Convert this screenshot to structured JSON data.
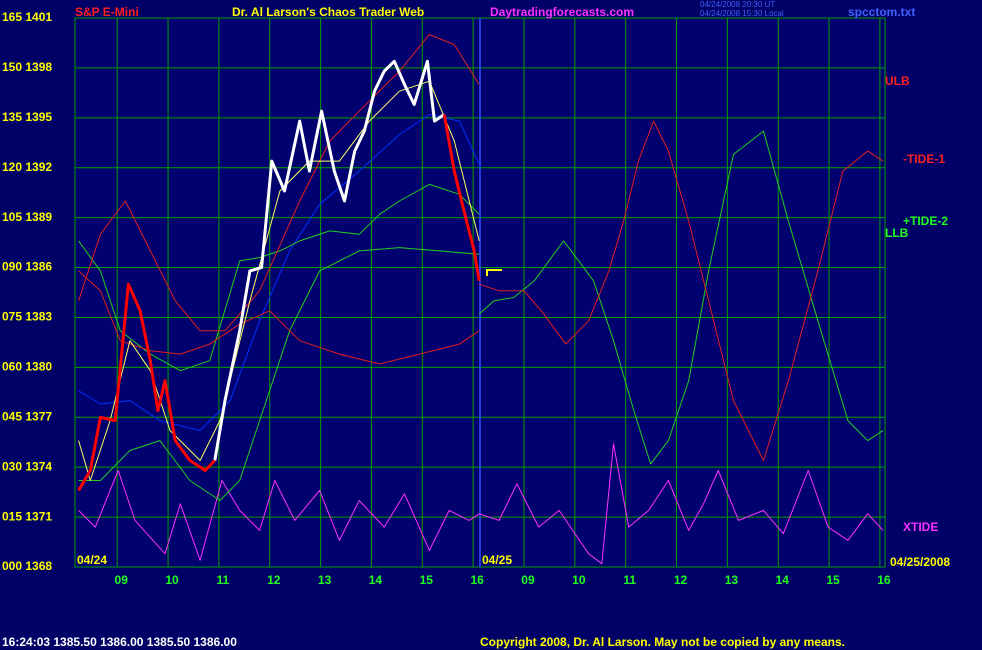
{
  "chart_data": {
    "type": "line",
    "header": [
      {
        "text": "S&P E-Mini",
        "color": "#ff2020"
      },
      {
        "text": "Dr. Al Larson's Chaos Trader Web",
        "color": "#ffff00"
      },
      {
        "text": "Daytradingforecasts.com",
        "color": "#ff30ff"
      },
      {
        "text": "04/24/2008 20:30 UT",
        "color": "#4060ff"
      },
      {
        "text": "04/24/2008 15:30 Local",
        "color": "#4060ff"
      },
      {
        "text": "spcctom.txt",
        "color": "#4060ff"
      }
    ],
    "footer": [
      {
        "text": "16:24:03  1385.50  1386.00  1385.50  1386.00",
        "color": "#ffffff"
      },
      {
        "text": "Copyright 2008, Dr. Al Larson. May not be copied by any means.",
        "color": "#ffff00"
      }
    ],
    "annotations": [
      {
        "text": "ULB",
        "color": "#ff2020"
      },
      {
        "text": "-TIDE-1",
        "color": "#ff2020"
      },
      {
        "text": "+TIDE-2",
        "color": "#20ff20"
      },
      {
        "text": "LLB",
        "color": "#20ff20"
      },
      {
        "text": "XTIDE",
        "color": "#ff30ff"
      },
      {
        "text": "04/24",
        "color": "#ffff00"
      },
      {
        "text": "04/25",
        "color": "#ffff00"
      },
      {
        "text": "04/25/2008",
        "color": "#ffff00"
      }
    ],
    "xlim": [
      -0.83,
      15.1
    ],
    "xticks": [
      {
        "value": 0,
        "label": "09"
      },
      {
        "value": 1,
        "label": "10"
      },
      {
        "value": 2,
        "label": "11"
      },
      {
        "value": 3,
        "label": "12"
      },
      {
        "value": 4,
        "label": "13"
      },
      {
        "value": 5,
        "label": "14"
      },
      {
        "value": 6,
        "label": "15"
      },
      {
        "value": 7,
        "label": "16"
      },
      {
        "value": 8,
        "label": "09"
      },
      {
        "value": 9,
        "label": "10"
      },
      {
        "value": 10,
        "label": "11"
      },
      {
        "value": 11,
        "label": "12"
      },
      {
        "value": 12,
        "label": "13"
      },
      {
        "value": 13,
        "label": "14"
      },
      {
        "value": 14,
        "label": "15"
      },
      {
        "value": 15,
        "label": "16"
      }
    ],
    "ylim": [
      0,
      165
    ],
    "yticks": [
      {
        "value": 0,
        "label": "000 1368"
      },
      {
        "value": 15,
        "label": "015 1371"
      },
      {
        "value": 30,
        "label": "030 1374"
      },
      {
        "value": 45,
        "label": "045 1377"
      },
      {
        "value": 60,
        "label": "060 1380"
      },
      {
        "value": 75,
        "label": "075 1383"
      },
      {
        "value": 90,
        "label": "090 1386"
      },
      {
        "value": 105,
        "label": "105 1389"
      },
      {
        "value": 120,
        "label": "120 1392"
      },
      {
        "value": 135,
        "label": "135 1395"
      },
      {
        "value": 150,
        "label": "150 1398"
      },
      {
        "value": 165,
        "label": "165 1401"
      }
    ],
    "grid": true,
    "grid_color": "#00a000",
    "series": [
      {
        "color": "#ff30ff",
        "x": [
          -0.76,
          -0.43,
          0.02,
          0.35,
          0.94,
          1.24,
          1.63,
          2.06,
          2.41,
          2.8,
          3.1,
          3.49,
          3.98,
          4.37,
          4.76,
          5.25,
          5.65,
          6.14,
          6.53,
          6.92,
          7.12,
          7.51,
          7.86,
          8.29,
          8.69,
          9.27,
          9.53,
          9.76,
          10.06,
          10.45,
          10.84,
          11.24,
          11.53,
          11.82,
          12.22,
          12.71,
          13.1,
          13.59,
          13.98,
          14.37,
          14.76,
          15.06
        ],
        "values": [
          17,
          12,
          29,
          14,
          4,
          19,
          2,
          26,
          17,
          11,
          26,
          14,
          23,
          8,
          20,
          12,
          22,
          5,
          17,
          14,
          16,
          14,
          25,
          12,
          17,
          4,
          1,
          37,
          12,
          17,
          26,
          11,
          19,
          29,
          14,
          17,
          10,
          29,
          12,
          8,
          16,
          11
        ]
      },
      {
        "color": "#0030ff",
        "x": [
          -0.76,
          -0.33,
          0.25,
          0.84,
          1.63,
          2.22,
          2.8,
          3.39,
          3.98,
          4.76,
          5.55,
          6.14,
          6.73,
          7.12
        ],
        "values": [
          53,
          49,
          50,
          44,
          41,
          50,
          74,
          95,
          109,
          119,
          130,
          136,
          134,
          121
        ]
      },
      {
        "color": "#20d020",
        "x": [
          -0.76,
          -0.33,
          0.25,
          0.84,
          1.43,
          2.02,
          2.41,
          2.8,
          3.39,
          3.98,
          4.76,
          5.55,
          6.33,
          7.12
        ],
        "values": [
          26,
          26,
          35,
          38,
          26,
          20,
          26,
          44,
          71,
          89,
          95,
          96,
          95,
          94
        ]
      },
      {
        "color": "#20d020",
        "x": [
          -0.76,
          -0.33,
          0.06,
          0.65,
          1.24,
          1.82,
          2.41,
          2.8,
          3.2,
          3.59,
          4.18,
          4.76,
          5.16,
          5.55,
          6.14,
          6.73,
          7.12
        ],
        "values": [
          98,
          89,
          71,
          64,
          59,
          62,
          92,
          93,
          95,
          98,
          101,
          100,
          106,
          110,
          115,
          112,
          106
        ]
      },
      {
        "color": "#20d020",
        "x": [
          7.12,
          7.41,
          7.8,
          8.2,
          8.78,
          9.37,
          9.76,
          10.16,
          10.49,
          10.84,
          11.24,
          11.63,
          12.12,
          12.71,
          13.2,
          13.78,
          14.37,
          14.76,
          15.06
        ],
        "values": [
          76,
          80,
          81,
          86,
          98,
          86,
          68,
          47,
          31,
          38,
          56,
          89,
          124,
          131,
          104,
          74,
          44,
          38,
          41
        ]
      },
      {
        "color": "#e02020",
        "x": [
          -0.76,
          -0.33,
          0.16,
          0.65,
          1.14,
          1.63,
          2.12,
          2.8,
          3.59,
          4.18,
          4.76,
          5.55,
          6.14,
          6.63,
          7.12
        ],
        "values": [
          80,
          100,
          110,
          95,
          80,
          71,
          71,
          83,
          110,
          128,
          137,
          149,
          160,
          157,
          145
        ]
      },
      {
        "color": "#e02020",
        "x": [
          -0.76,
          -0.33,
          0.06,
          0.65,
          1.24,
          1.82,
          2.41,
          3.0,
          3.59,
          4.37,
          5.16,
          5.94,
          6.73,
          7.12
        ],
        "values": [
          89,
          83,
          68,
          65,
          64,
          67,
          73,
          77,
          68,
          64,
          61,
          64,
          67,
          71
        ]
      },
      {
        "color": "#e02020",
        "x": [
          7.12,
          7.51,
          8.0,
          8.39,
          8.82,
          9.27,
          9.67,
          9.96,
          10.25,
          10.55,
          10.84,
          11.24,
          11.63,
          12.12,
          12.71,
          13.2,
          13.78,
          14.27,
          14.76,
          15.06
        ],
        "values": [
          85,
          83,
          83,
          76,
          67,
          74,
          89,
          104,
          122,
          134,
          125,
          104,
          80,
          50,
          32,
          56,
          89,
          119,
          125,
          122
        ]
      },
      {
        "color": "#ffff60",
        "x": [
          -0.76,
          -0.53,
          -0.14,
          0.25,
          0.65,
          1.04,
          1.63,
          2.02,
          2.61,
          3.2,
          3.78,
          4.37,
          4.96,
          5.55,
          6.14,
          6.63,
          7.12
        ],
        "values": [
          38,
          26,
          44,
          68,
          59,
          41,
          32,
          44,
          80,
          113,
          122,
          122,
          134,
          143,
          146,
          128,
          98
        ]
      },
      {
        "color": "#ffffff",
        "x": [
          1.92,
          2.12,
          2.41,
          2.61,
          2.84,
          3.04,
          3.29,
          3.59,
          3.78,
          4.02,
          4.27,
          4.47,
          4.67,
          4.86,
          5.06,
          5.25,
          5.45,
          5.65,
          5.84,
          6.1,
          6.24,
          6.43
        ],
        "values": [
          32,
          50,
          71,
          89,
          90,
          122,
          113,
          134,
          119,
          137,
          119,
          110,
          125,
          131,
          143,
          149,
          152,
          145,
          139,
          152,
          134,
          136
        ]
      },
      {
        "color": "#ff0000",
        "x": [
          -0.76,
          -0.53,
          -0.33,
          -0.04,
          0.22,
          0.45,
          0.65,
          0.8,
          0.94,
          1.14,
          1.43,
          1.73,
          1.92,
          4.0,
          6.43,
          6.63,
          6.82,
          7.02,
          7.12
        ],
        "values": [
          23,
          29,
          45,
          44,
          85,
          77,
          62,
          47,
          56,
          38,
          32,
          29,
          32,
          null,
          136,
          119,
          107,
          95,
          86
        ]
      }
    ]
  }
}
